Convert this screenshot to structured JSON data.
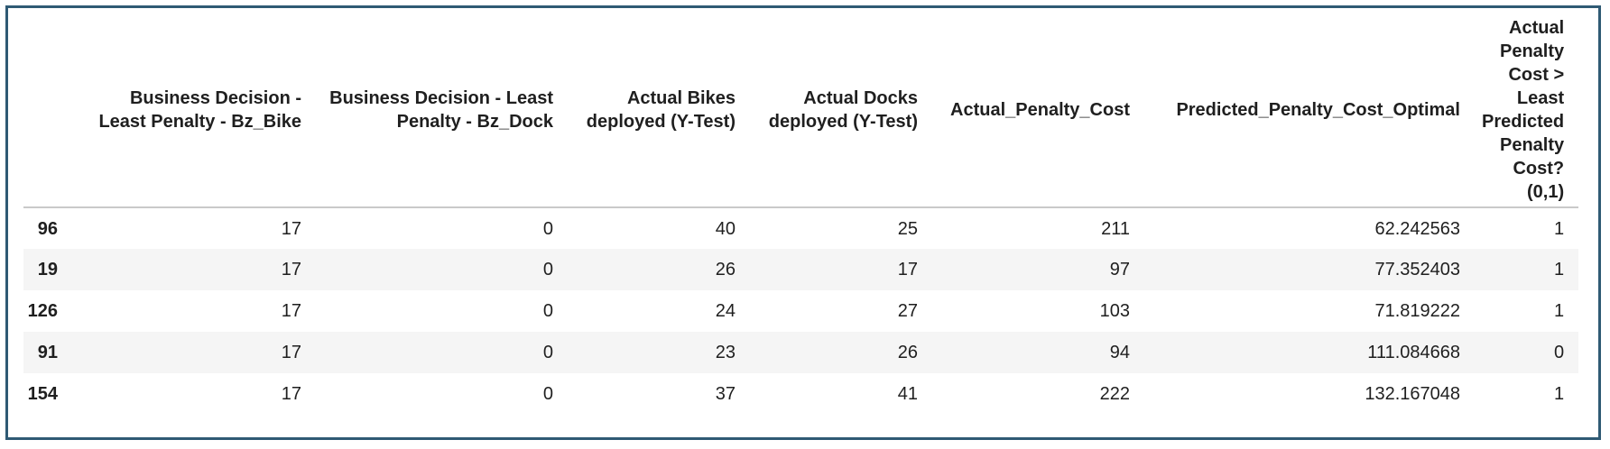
{
  "table": {
    "columns": [
      "Business Decision - Least Penalty - Bz_Bike",
      "Business Decision - Least Penalty - Bz_Dock",
      "Actual Bikes deployed (Y-Test)",
      "Actual Docks deployed (Y-Test)",
      "Actual_Penalty_Cost",
      "Predicted_Penalty_Cost_Optimal",
      "Actual Penalty Cost > Least Predicted Penalty Cost? (0,1)"
    ],
    "rows": [
      {
        "index": "96",
        "cells": [
          "17",
          "0",
          "40",
          "25",
          "211",
          "62.242563",
          "1"
        ]
      },
      {
        "index": "19",
        "cells": [
          "17",
          "0",
          "26",
          "17",
          "97",
          "77.352403",
          "1"
        ]
      },
      {
        "index": "126",
        "cells": [
          "17",
          "0",
          "24",
          "27",
          "103",
          "71.819222",
          "1"
        ]
      },
      {
        "index": "91",
        "cells": [
          "17",
          "0",
          "23",
          "26",
          "94",
          "111.084668",
          "0"
        ]
      },
      {
        "index": "154",
        "cells": [
          "17",
          "0",
          "37",
          "41",
          "222",
          "132.167048",
          "1"
        ]
      }
    ]
  },
  "colors": {
    "frame_border": "#2f5a74",
    "stripe": "#f5f5f5",
    "header_rule": "#c9c9c9"
  }
}
